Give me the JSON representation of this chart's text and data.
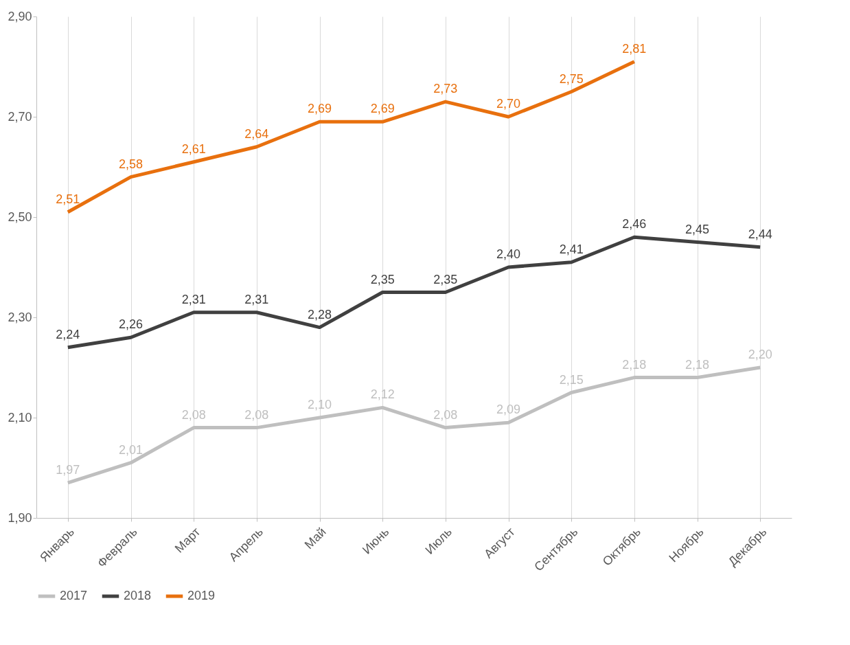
{
  "chart_data": {
    "type": "line",
    "categories": [
      "Январь",
      "Февраль",
      "Март",
      "Апрель",
      "Май",
      "Июнь",
      "Июль",
      "Август",
      "Сентябрь",
      "Октябрь",
      "Ноябрь",
      "Декабрь"
    ],
    "series": [
      {
        "name": "2017",
        "color": "#bfbfbf",
        "values": [
          1.97,
          2.01,
          2.08,
          2.08,
          2.1,
          2.12,
          2.08,
          2.09,
          2.15,
          2.18,
          2.18,
          2.2
        ],
        "value_labels": [
          "1,97",
          "2,01",
          "2,08",
          "2,08",
          "2,10",
          "2,12",
          "2,08",
          "2,09",
          "2,15",
          "2,18",
          "2,18",
          "2,20"
        ]
      },
      {
        "name": "2018",
        "color": "#404040",
        "values": [
          2.24,
          2.26,
          2.31,
          2.31,
          2.28,
          2.35,
          2.35,
          2.4,
          2.41,
          2.46,
          2.45,
          2.44
        ],
        "value_labels": [
          "2,24",
          "2,26",
          "2,31",
          "2,31",
          "2,28",
          "2,35",
          "2,35",
          "2,40",
          "2,41",
          "2,46",
          "2,45",
          "2,44"
        ]
      },
      {
        "name": "2019",
        "color": "#e8700e",
        "values": [
          2.51,
          2.58,
          2.61,
          2.64,
          2.69,
          2.69,
          2.73,
          2.7,
          2.75,
          2.81,
          null,
          null
        ],
        "value_labels": [
          "2,51",
          "2,58",
          "2,61",
          "2,64",
          "2,69",
          "2,69",
          "2,73",
          "2,70",
          "2,75",
          "2,81",
          null,
          null
        ]
      }
    ],
    "ylim": [
      1.9,
      2.9
    ],
    "yticks": [
      {
        "value": 1.9,
        "label": "1,90"
      },
      {
        "value": 2.1,
        "label": "2,10"
      },
      {
        "value": 2.3,
        "label": "2,30"
      },
      {
        "value": 2.5,
        "label": "2,50"
      },
      {
        "value": 2.7,
        "label": "2,70"
      },
      {
        "value": 2.9,
        "label": "2,90"
      }
    ],
    "grid": "x",
    "legend": "bottom",
    "marker": "none",
    "line_style": "solid"
  }
}
